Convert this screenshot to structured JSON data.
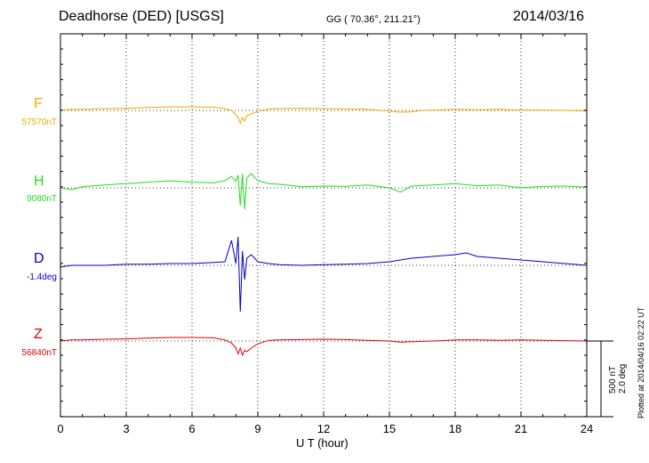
{
  "header": {
    "title": "Deadhorse (DED)  [USGS]",
    "coords": "GG ( 70.36°, 211.21°)",
    "date": "2014/03/16"
  },
  "footer": {
    "plotted": "Plotted at 2014/04/16 02:22 UT"
  },
  "scale_bar": {
    "line1": "500 nT",
    "line2": "2.0 deg"
  },
  "colors": {
    "F": "#f2a900",
    "H": "#22dd22",
    "D": "#0000cc",
    "Z": "#dd0000"
  },
  "chart_data": {
    "type": "line",
    "xlabel": "U T (hour)",
    "xlim": [
      0,
      24
    ],
    "x_ticks": [
      "0",
      "3",
      "6",
      "9",
      "12",
      "15",
      "18",
      "21",
      "24"
    ],
    "grid": "dotted vertical at every 3 hours",
    "series": [
      {
        "name": "F",
        "baseline_label": "57570nT",
        "x": [
          0,
          0.5,
          1,
          2,
          3,
          4,
          5,
          6,
          7,
          7.5,
          7.8,
          8.0,
          8.1,
          8.2,
          8.3,
          8.4,
          8.5,
          8.7,
          9.0,
          9.5,
          10,
          11,
          12,
          13,
          14,
          15,
          15.5,
          16,
          16.5,
          17,
          18,
          19,
          20,
          21,
          22,
          23,
          24
        ],
        "y": [
          0,
          3,
          3,
          5,
          6,
          8,
          10,
          10,
          9,
          5,
          0,
          -12,
          -20,
          -36,
          -20,
          -30,
          -14,
          -10,
          -2,
          4,
          5,
          6,
          5,
          4,
          3,
          -2,
          -5,
          -4,
          0,
          1,
          3,
          2,
          3,
          1,
          1,
          0,
          -2
        ]
      },
      {
        "name": "H",
        "baseline_label": "9080nT",
        "x": [
          0,
          0.5,
          1,
          2,
          3,
          4,
          5,
          6,
          7,
          7.5,
          7.8,
          8.0,
          8.1,
          8.2,
          8.3,
          8.4,
          8.5,
          8.7,
          9.0,
          9.5,
          10,
          11,
          12,
          13,
          14,
          15,
          15.5,
          16,
          17,
          18,
          19,
          20,
          21,
          22,
          23,
          24
        ],
        "y": [
          0,
          -5,
          3,
          8,
          12,
          16,
          20,
          16,
          14,
          20,
          32,
          18,
          36,
          -50,
          40,
          -60,
          28,
          40,
          20,
          12,
          10,
          3,
          5,
          4,
          8,
          0,
          -12,
          5,
          8,
          12,
          6,
          8,
          0,
          4,
          5,
          2
        ]
      },
      {
        "name": "D",
        "baseline_label": "-1.4deg",
        "x": [
          0,
          0.5,
          1,
          2,
          3,
          4,
          5,
          6,
          7,
          7.5,
          7.8,
          8.0,
          8.1,
          8.2,
          8.3,
          8.4,
          8.5,
          8.7,
          9.0,
          9.5,
          10,
          11,
          12,
          13,
          14,
          15,
          16,
          17,
          18,
          18.5,
          19,
          20,
          21,
          22,
          23,
          24
        ],
        "y": [
          -5,
          0,
          0,
          0,
          3,
          3,
          5,
          5,
          8,
          10,
          70,
          5,
          80,
          -130,
          40,
          -40,
          20,
          30,
          10,
          5,
          2,
          0,
          2,
          3,
          5,
          10,
          20,
          25,
          30,
          35,
          25,
          20,
          15,
          10,
          5,
          0
        ]
      },
      {
        "name": "Z",
        "baseline_label": "56840nT",
        "x": [
          0,
          0.5,
          1,
          2,
          3,
          4,
          5,
          6,
          7,
          7.5,
          7.8,
          8.0,
          8.1,
          8.2,
          8.3,
          8.4,
          8.5,
          8.7,
          9.0,
          9.5,
          10,
          11,
          12,
          13,
          14,
          15,
          15.5,
          16,
          17,
          18,
          19,
          20,
          21,
          22,
          23,
          24
        ],
        "y": [
          0,
          3,
          3,
          5,
          6,
          8,
          10,
          10,
          9,
          3,
          -5,
          -20,
          -36,
          -20,
          -40,
          -26,
          -30,
          -20,
          -8,
          2,
          3,
          4,
          5,
          4,
          2,
          0,
          -3,
          -2,
          0,
          3,
          3,
          2,
          3,
          2,
          1,
          0
        ]
      }
    ]
  }
}
